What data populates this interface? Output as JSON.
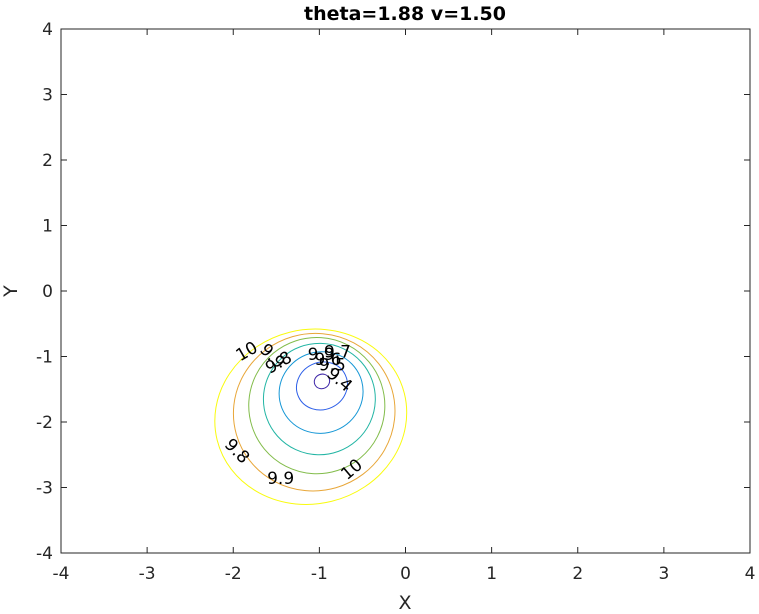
{
  "chart_data": {
    "type": "contour",
    "title": "theta=1.88 v=1.50",
    "xlabel": "X",
    "ylabel": "Y",
    "xlim": [
      -4,
      4
    ],
    "ylim": [
      -4,
      4
    ],
    "xticks": [
      "-4",
      "-3",
      "-2",
      "-1",
      "0",
      "1",
      "2",
      "3",
      "4"
    ],
    "yticks": [
      "-4",
      "-3",
      "-2",
      "-1",
      "0",
      "1",
      "2",
      "3",
      "4"
    ],
    "grid": false,
    "minimum": {
      "x": -0.97,
      "y": -1.4
    },
    "levels": [
      {
        "value": 9.4,
        "color": "#3e26a8",
        "cx": -0.97,
        "cy": -1.38,
        "rx": 0.09,
        "ry": 0.11,
        "tilt": -25
      },
      {
        "value": 9.5,
        "color": "#2d5fe8",
        "cx": -0.97,
        "cy": -1.45,
        "rx": 0.3,
        "ry": 0.36,
        "tilt": -25
      },
      {
        "value": 9.6,
        "color": "#1697d6",
        "cx": -0.98,
        "cy": -1.55,
        "rx": 0.49,
        "ry": 0.62,
        "tilt": -22
      },
      {
        "value": 9.7,
        "color": "#22b5a4",
        "cx": -1.0,
        "cy": -1.65,
        "rx": 0.65,
        "ry": 0.85,
        "tilt": -20
      },
      {
        "value": 9.8,
        "color": "#82bc4a",
        "cx": -1.03,
        "cy": -1.75,
        "rx": 0.79,
        "ry": 1.04,
        "tilt": -18
      },
      {
        "value": 9.9,
        "color": "#e8a638",
        "cx": -1.06,
        "cy": -1.85,
        "rx": 0.94,
        "ry": 1.2,
        "tilt": -16
      },
      {
        "value": 10,
        "color": "#f9fb0e",
        "cx": -1.1,
        "cy": -1.92,
        "rx": 1.12,
        "ry": 1.33,
        "tilt": -14
      }
    ],
    "contour_labels": [
      {
        "text": "10",
        "x": -1.84,
        "y": -0.93,
        "angle": -30
      },
      {
        "text": "9.9",
        "x": -1.55,
        "y": -1.0,
        "angle": 45
      },
      {
        "text": "9.8",
        "x": -1.47,
        "y": -1.1,
        "angle": -30
      },
      {
        "text": "9.9",
        "x": -0.98,
        "y": -0.98,
        "angle": 0
      },
      {
        "text": "9.7",
        "x": -0.79,
        "y": -0.94,
        "angle": 0
      },
      {
        "text": "9.6",
        "x": -0.9,
        "y": -1.05,
        "angle": 0
      },
      {
        "text": "9.5",
        "x": -0.85,
        "y": -1.14,
        "angle": 0
      },
      {
        "text": "9.4",
        "x": -0.77,
        "y": -1.36,
        "angle": 40
      },
      {
        "text": "9.8",
        "x": -1.96,
        "y": -2.45,
        "angle": 45
      },
      {
        "text": "9.9",
        "x": -1.45,
        "y": -2.87,
        "angle": 0
      },
      {
        "text": "10",
        "x": -0.62,
        "y": -2.73,
        "angle": -40
      }
    ]
  }
}
